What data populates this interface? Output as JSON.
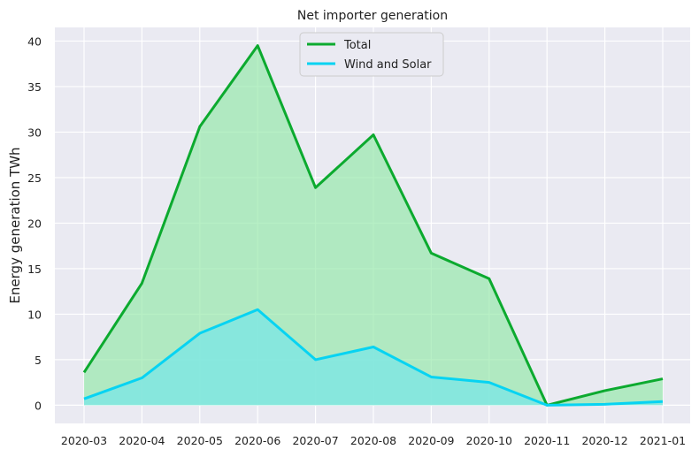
{
  "chart_data": {
    "type": "area",
    "title": "Net importer generation",
    "xlabel": "",
    "ylabel": "Energy generation TWh",
    "categories": [
      "2020-03",
      "2020-04",
      "2020-05",
      "2020-06",
      "2020-07",
      "2020-08",
      "2020-09",
      "2020-10",
      "2020-11",
      "2020-12",
      "2021-01"
    ],
    "ylim": [
      -2,
      41.5
    ],
    "yticks": [
      0,
      5,
      10,
      15,
      20,
      25,
      30,
      35,
      40
    ],
    "grid": true,
    "legend_position": "top-center",
    "series": [
      {
        "name": "Total",
        "line_color": "#0caa2f",
        "fill_color": "#90e8a6",
        "values": [
          3.6,
          13.4,
          30.6,
          39.5,
          23.9,
          29.7,
          16.7,
          13.9,
          0.0,
          1.6,
          2.9
        ]
      },
      {
        "name": "Wind and Solar",
        "line_color": "#07d3f2",
        "fill_color": "#7ae6e6",
        "values": [
          0.7,
          3.0,
          7.9,
          10.5,
          5.0,
          6.4,
          3.1,
          2.5,
          0.0,
          0.1,
          0.4
        ]
      }
    ]
  },
  "colors": {
    "plot_background": "#eaeaf2",
    "grid": "#ffffff"
  }
}
